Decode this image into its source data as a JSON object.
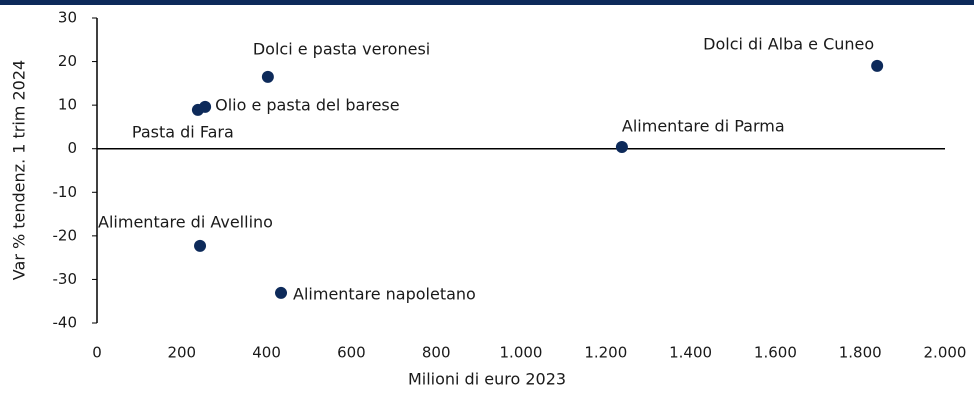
{
  "chart_data": {
    "type": "scatter",
    "x_label": "Milioni di euro 2023",
    "y_label": "Var % tendenz. 1 trim 2024",
    "labels": [
      "Dolci e pasta veronesi",
      "Dolci di Alba e Cuneo",
      "Olio e pasta del barese",
      "Pasta di Fara",
      "Alimentare di Parma",
      "Alimentare di Avellino",
      "Alimentare napoletano"
    ],
    "x": [
      403,
      1840,
      255,
      238,
      1238,
      243,
      434
    ],
    "values": [
      16.5,
      19,
      9.6,
      8.9,
      0.4,
      -22.3,
      -33.1
    ],
    "color": "#0d2a5a",
    "xlim": [
      0,
      2000
    ],
    "xticks": [
      0,
      200,
      400,
      600,
      800,
      {
        "value": 1000,
        "label": "1.000"
      },
      {
        "value": 1200,
        "label": "1.200"
      },
      {
        "value": 1400,
        "label": "1.400"
      },
      {
        "value": 1600,
        "label": "1.600"
      },
      {
        "value": 1800,
        "label": "1.800"
      },
      {
        "value": 2000,
        "label": "2.000"
      }
    ],
    "ylim": [
      -40,
      30
    ],
    "yticks": [
      -40,
      -30,
      -20,
      -10,
      0,
      10,
      20,
      30
    ]
  }
}
